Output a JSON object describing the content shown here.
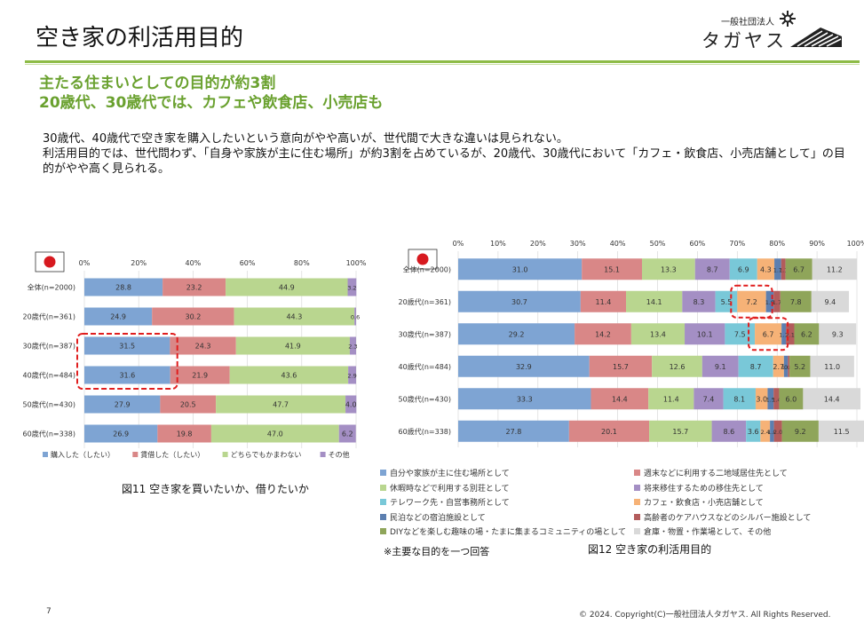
{
  "header": {
    "title": "空き家の利活用目的",
    "logo_top": "一般社団法人",
    "logo_main": "タガヤス"
  },
  "subtitle": {
    "line1": "主たる住まいとしての目的が約3割",
    "line2": "20歳代、30歳代では、カフェや飲食店、小売店も"
  },
  "description": {
    "line1": "30歳代、40歳代で空き家を購入したいという意向がやや高いが、世代間で大きな違いは見られない。",
    "line2": "利活用目的では、世代問わず、「自身や家族が主に住む場所」が約3割を占めているが、20歳代、30歳代において「カフェ・飲食店、小売店舗として」の目的がやや高く見られる。"
  },
  "colors": {
    "accent": "#8dbb45",
    "subtitle": "#6aa12f",
    "highlight": "#e01e1e",
    "flag_red": "#d7191f"
  },
  "chart_data": [
    {
      "type": "bar",
      "orientation": "horizontal",
      "stacked": true,
      "percent": true,
      "categories": [
        "全体(n=2000)",
        "20歳代(n=361)",
        "30歳代(n=387)",
        "40歳代(n=484)",
        "50歳代(n=430)",
        "60歳代(n=338)"
      ],
      "xticks": [
        "0%",
        "20%",
        "40%",
        "60%",
        "80%",
        "100%"
      ],
      "series": [
        {
          "name": "購入した（したい）",
          "color": "#7ea4d3",
          "values": [
            28.8,
            24.9,
            31.5,
            31.6,
            27.9,
            26.9
          ],
          "labels": [
            "28.8",
            "24.9",
            "31.5",
            "31.6",
            "27.9",
            "26.9"
          ]
        },
        {
          "name": "賃借した（したい）",
          "color": "#d98787",
          "values": [
            23.2,
            30.2,
            24.3,
            21.9,
            20.5,
            19.8
          ],
          "labels": [
            "23.2",
            "30.2",
            "24.3",
            "21.9",
            "20.5",
            "19.8"
          ]
        },
        {
          "name": "どちらでもかまわない",
          "color": "#b9d68f",
          "values": [
            44.9,
            44.3,
            41.9,
            43.6,
            47.7,
            47.0
          ],
          "labels": [
            "44.9",
            "44.3",
            "41.9",
            "43.6",
            "47.7",
            "47.0"
          ]
        },
        {
          "name": "その他",
          "color": "#a48fc4",
          "values": [
            3.2,
            0.6,
            2.3,
            2.9,
            4.0,
            6.2
          ],
          "labels": [
            "3.2",
            "0.6",
            "2.3",
            "2.9",
            "4.0",
            "6.2"
          ]
        }
      ],
      "caption": "図11  空き家を買いたいか、借りたいか"
    },
    {
      "type": "bar",
      "orientation": "horizontal",
      "stacked": true,
      "percent": true,
      "categories": [
        "全体(n=2000)",
        "20歳代(n=361)",
        "30歳代(n=387)",
        "40歳代(n=484)",
        "50歳代(n=430)",
        "60歳代(n=338)"
      ],
      "xticks": [
        "0%",
        "10%",
        "20%",
        "30%",
        "40%",
        "50%",
        "60%",
        "70%",
        "80%",
        "90%",
        "100%"
      ],
      "series": [
        {
          "name": "自分や家族が主に住む場所として",
          "color": "#7ea4d3",
          "values": [
            31.0,
            30.7,
            29.2,
            32.9,
            33.3,
            27.8
          ],
          "labels": [
            "31.0",
            "30.7",
            "29.2",
            "32.9",
            "33.3",
            "27.8"
          ]
        },
        {
          "name": "週末などに利用する二地域居住先として",
          "color": "#d98787",
          "values": [
            15.1,
            11.4,
            14.2,
            15.7,
            14.4,
            20.1
          ],
          "labels": [
            "15.1",
            "11.4",
            "14.2",
            "15.7",
            "14.4",
            "20.1"
          ]
        },
        {
          "name": "休暇時などで利用する別荘として",
          "color": "#b9d68f",
          "values": [
            13.3,
            14.1,
            13.4,
            12.6,
            11.4,
            15.7
          ],
          "labels": [
            "13.3",
            "14.1",
            "13.4",
            "12.6",
            "11.4",
            "15.7"
          ]
        },
        {
          "name": "将来移住するための移住先として",
          "color": "#a48fc4",
          "values": [
            8.7,
            8.3,
            10.1,
            9.1,
            7.4,
            8.6
          ],
          "labels": [
            "8.7",
            "8.3",
            "10.1",
            "9.1",
            "7.4",
            "8.6"
          ]
        },
        {
          "name": "テレワーク先・自営事務所として",
          "color": "#79c8d8",
          "values": [
            6.9,
            5.5,
            7.5,
            8.7,
            8.1,
            3.6
          ],
          "labels": [
            "6.9",
            "5.5",
            "7.5",
            "8.7",
            "8.1",
            "3.6"
          ]
        },
        {
          "name": "カフェ・飲食店・小売店舗として",
          "color": "#f6b277",
          "values": [
            4.3,
            7.2,
            6.7,
            2.7,
            3.0,
            2.4
          ],
          "labels": [
            "4.3",
            "7.2",
            "6.7",
            "2.7",
            "3.0",
            "2.4"
          ]
        },
        {
          "name": "民泊などの宿泊施設として",
          "color": "#5c7fb0",
          "values": [
            1.7,
            1.9,
            1.1,
            1.0,
            1.5,
            1.0
          ],
          "labels": [
            "1.7",
            "1.9",
            "1.1",
            "1.0",
            "1.5",
            "1.0"
          ]
        },
        {
          "name": "高齢者のケアハウスなどのシルバー施設として",
          "color": "#b35c5c",
          "values": [
            1.1,
            1.7,
            2.1,
            0.4,
            1.4,
            2.0
          ],
          "labels": [
            "1.1",
            "1.7",
            "2.1",
            "0.4",
            "1.4",
            "2.0"
          ]
        },
        {
          "name": "DIYなどを楽しむ趣味の場・たまに集まるコミュニティの場として",
          "color": "#8fa55a",
          "values": [
            6.7,
            7.8,
            6.2,
            5.2,
            6.0,
            9.2
          ],
          "labels": [
            "6.7",
            "7.8",
            "6.2",
            "5.2",
            "6.0",
            "9.2"
          ]
        },
        {
          "name": "倉庫・物置・作業場として、その他",
          "color": "#d9d9d9",
          "values": [
            11.2,
            9.4,
            9.3,
            11.0,
            14.4,
            11.5
          ],
          "labels": [
            "11.2",
            "9.4",
            "9.3",
            "11.0",
            "14.4",
            "11.5"
          ]
        }
      ],
      "caption": "図12  空き家の利活用目的",
      "note": "※主要な目的を一つ回答"
    }
  ],
  "footer": {
    "page_number": "7",
    "copyright": "© 2024. Copyright(C)一般社団法人タガヤス. All Rights Reserved."
  }
}
